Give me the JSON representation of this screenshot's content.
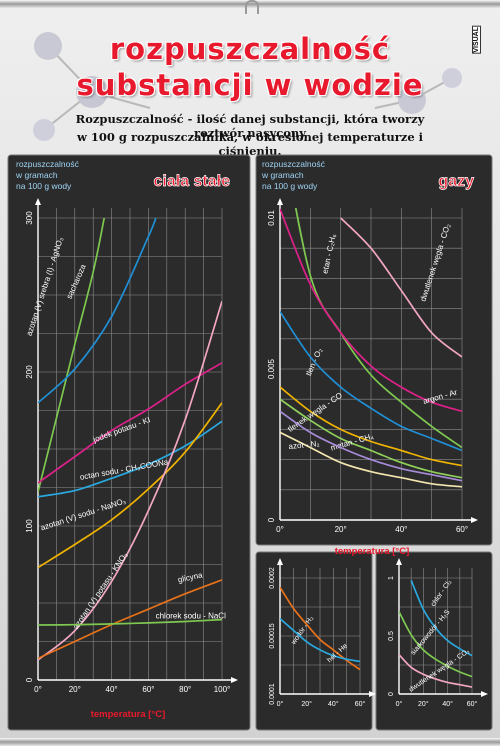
{
  "poster": {
    "title_line1": "rozpuszczalność",
    "title_line2": "substancji w wodzie",
    "brand": "VISUAL",
    "definition_line1": "Rozpuszczalność - ilość danej substancji, która tworzy roztwór nasycony",
    "definition_line2": "w 100 g rozpuszczalnika, w określonej temperaturze i ciśnieniu.",
    "colors": {
      "title": "#e8192c",
      "panel": "#2b2b2b",
      "panel_title": "#e8192c",
      "axis_label": "#e8192c",
      "text": "#ffffff",
      "info": "#9fd4f5"
    }
  },
  "chart_data": [
    {
      "type": "line",
      "title": "ciała stałe",
      "ylabel_lines": [
        "rozpuszczalność",
        "w gramach",
        "na 100 g wody"
      ],
      "xlabel": "temperatura [°C]",
      "xlim": [
        0,
        100
      ],
      "ylim": [
        0,
        300
      ],
      "x_ticks": [
        "0°",
        "20°",
        "40°",
        "60°",
        "80°",
        "100°"
      ],
      "x_tick_values": [
        0,
        20,
        40,
        60,
        80,
        100
      ],
      "y_ticks": [
        "0",
        "100",
        "200",
        "300"
      ],
      "y_tick_values": [
        0,
        100,
        200,
        300
      ],
      "grid": true,
      "series": [
        {
          "name": "azotan (V) srebra (I) - AgNO₃",
          "color": "#7ec850",
          "x": [
            0,
            10,
            20,
            30,
            36
          ],
          "y": [
            122,
            170,
            218,
            265,
            300
          ]
        },
        {
          "name": "sacharoza",
          "color": "#1f8fd6",
          "x": [
            0,
            20,
            40,
            60,
            64
          ],
          "y": [
            180,
            202,
            236,
            288,
            300
          ]
        },
        {
          "name": "jodek potasu - KI",
          "color": "#e0208a",
          "x": [
            0,
            20,
            40,
            60,
            80,
            100
          ],
          "y": [
            128,
            145,
            162,
            176,
            192,
            206
          ]
        },
        {
          "name": "octan sodu - CH₃COONa",
          "color": "#2aa8e0",
          "x": [
            0,
            20,
            40,
            60,
            80,
            100
          ],
          "y": [
            119,
            123,
            131,
            140,
            152,
            168
          ]
        },
        {
          "name": "azotan (V) sodu - NaNO₃",
          "color": "#f0b400",
          "x": [
            0,
            20,
            40,
            60,
            80,
            100
          ],
          "y": [
            73,
            88,
            104,
            124,
            148,
            180
          ]
        },
        {
          "name": "azotan (V) potasu - KNO₃",
          "color": "#f2a6c4",
          "x": [
            0,
            20,
            40,
            60,
            80,
            100
          ],
          "y": [
            13,
            32,
            64,
            110,
            169,
            246
          ]
        },
        {
          "name": "glicyna",
          "color": "#e8721a",
          "x": [
            0,
            20,
            40,
            60,
            80,
            100
          ],
          "y": [
            14,
            25,
            36,
            46,
            56,
            65
          ]
        },
        {
          "name": "chlorek sodu - NaCl",
          "color": "#7ec850",
          "x": [
            0,
            20,
            40,
            60,
            80,
            100
          ],
          "y": [
            35.7,
            35.9,
            36.4,
            37.1,
            38,
            39.2
          ]
        }
      ]
    },
    {
      "type": "line",
      "title": "gazy",
      "ylabel_lines": [
        "rozpuszczalność",
        "w gramach",
        "na 100 g wody"
      ],
      "xlabel": "temperatura [°C]",
      "xlim": [
        0,
        60
      ],
      "ylim": [
        0,
        0.01
      ],
      "x_ticks": [
        "0°",
        "20°",
        "40°",
        "60°"
      ],
      "x_tick_values": [
        0,
        20,
        40,
        60
      ],
      "y_ticks": [
        "0",
        "0.005",
        "0.01"
      ],
      "y_tick_values": [
        0,
        0.005,
        0.01
      ],
      "grid": true,
      "series": [
        {
          "name": "etan - C₂H₆",
          "color": "#7ec850",
          "x": [
            0,
            10,
            20,
            30,
            40,
            50,
            60
          ],
          "y": [
            0.0132,
            0.0081,
            0.0062,
            0.0048,
            0.0039,
            0.0031,
            0.0024
          ]
        },
        {
          "name": "dwutlenek węgla - CO₂",
          "color": "#f2a6c4",
          "x": [
            20,
            30,
            40,
            50,
            60
          ],
          "y": [
            0.01,
            0.009,
            0.0076,
            0.0062,
            0.0054
          ]
        },
        {
          "name": "tlen - O₂",
          "color": "#1f8fd6",
          "x": [
            0,
            10,
            20,
            30,
            40,
            50,
            60
          ],
          "y": [
            0.0069,
            0.0054,
            0.0044,
            0.0037,
            0.0031,
            0.0027,
            0.0023
          ]
        },
        {
          "name": "argon - Ar",
          "color": "#e0208a",
          "x": [
            0,
            10,
            20,
            30,
            40,
            50,
            60
          ],
          "y": [
            0.0103,
            0.0078,
            0.0062,
            0.0051,
            0.0044,
            0.0039,
            0.0036
          ]
        },
        {
          "name": "tlenek węgla - CO",
          "color": "#f0b400",
          "x": [
            0,
            10,
            20,
            30,
            40,
            50,
            60
          ],
          "y": [
            0.0044,
            0.0036,
            0.003,
            0.0026,
            0.0023,
            0.002,
            0.0018
          ]
        },
        {
          "name": "metan - CH₄",
          "color": "#8fd05a",
          "x": [
            0,
            10,
            20,
            30,
            40,
            50,
            60
          ],
          "y": [
            0.004,
            0.0033,
            0.0027,
            0.0023,
            0.0019,
            0.0016,
            0.0014
          ]
        },
        {
          "name": "azot - N₂",
          "color": "#f4e6b0",
          "x": [
            0,
            10,
            20,
            30,
            40,
            50,
            60
          ],
          "y": [
            0.0029,
            0.0024,
            0.0019,
            0.0016,
            0.0014,
            0.0012,
            0.0011
          ]
        },
        {
          "name": "",
          "color": "#a68bd8",
          "x": [
            0,
            10,
            20,
            30,
            40,
            50,
            60
          ],
          "y": [
            0.0036,
            0.0029,
            0.0024,
            0.002,
            0.0017,
            0.0015,
            0.0013
          ]
        }
      ]
    },
    {
      "type": "line",
      "title": "",
      "xlabel": "",
      "xlim": [
        0,
        60
      ],
      "ylim": [
        0.0001,
        0.0002
      ],
      "x_ticks": [
        "0°",
        "20°",
        "40°",
        "60°"
      ],
      "x_tick_values": [
        0,
        20,
        40,
        60
      ],
      "y_ticks": [
        "0.0001",
        "0.00015",
        "0.0002"
      ],
      "y_tick_values": [
        0.0001,
        0.00015,
        0.0002
      ],
      "grid": true,
      "series": [
        {
          "name": "wodór - H₂",
          "color": "#e8721a",
          "x": [
            0,
            10,
            20,
            30,
            40,
            50,
            60
          ],
          "y": [
            0.000192,
            0.000174,
            0.00016,
            0.000147,
            0.000138,
            0.000129,
            0.000121
          ]
        },
        {
          "name": "hel - He",
          "color": "#2aa8e0",
          "x": [
            0,
            10,
            20,
            30,
            40,
            50,
            60
          ],
          "y": [
            0.000165,
            0.000155,
            0.000145,
            0.000138,
            0.000133,
            0.00013,
            0.000128
          ]
        }
      ]
    },
    {
      "type": "line",
      "title": "",
      "xlabel": "",
      "xlim": [
        0,
        60
      ],
      "ylim": [
        0,
        1
      ],
      "x_ticks": [
        "0°",
        "20°",
        "40°",
        "60°"
      ],
      "x_tick_values": [
        0,
        20,
        40,
        60
      ],
      "y_ticks": [
        "0",
        "0.5",
        "1"
      ],
      "y_tick_values": [
        0,
        0.5,
        1
      ],
      "grid": true,
      "series": [
        {
          "name": "chlor - Cl₂",
          "color": "#2aa8e0",
          "x": [
            10,
            20,
            30,
            40,
            50,
            60
          ],
          "y": [
            0.98,
            0.73,
            0.57,
            0.46,
            0.39,
            0.33
          ]
        },
        {
          "name": "siarkowodór - H₂S",
          "color": "#7ec850",
          "x": [
            0,
            10,
            20,
            30,
            40,
            50,
            60
          ],
          "y": [
            0.71,
            0.51,
            0.38,
            0.3,
            0.24,
            0.19,
            0.15
          ]
        },
        {
          "name": "dwutlenek węgla - CO₂",
          "color": "#f2a6c4",
          "x": [
            0,
            10,
            20,
            30,
            40,
            50,
            60
          ],
          "y": [
            0.34,
            0.23,
            0.17,
            0.13,
            0.1,
            0.08,
            0.06
          ]
        }
      ]
    }
  ]
}
